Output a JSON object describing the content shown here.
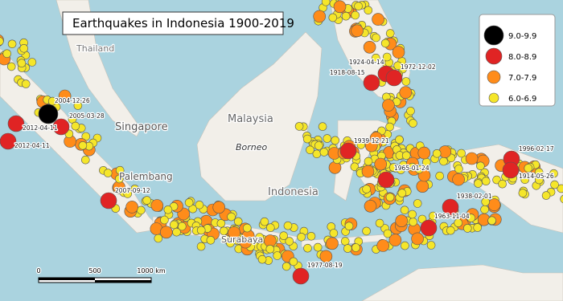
{
  "title": "Earthquakes in Indonesia 1900-2019",
  "legend": [
    {
      "label": "9.0-9.9",
      "color": "#000000"
    },
    {
      "label": "8.0-8.9",
      "color": "#e02424"
    },
    {
      "label": "7.0-7.9",
      "color": "#ff8c1a"
    },
    {
      "label": "6.0-6.9",
      "color": "#f5e62a"
    }
  ],
  "events": [
    {
      "date": "2004-12-26"
    },
    {
      "date": "2005-03-28"
    },
    {
      "date": "2012-04-11"
    },
    {
      "date": "2012-04-11"
    },
    {
      "date": "2007-09-12"
    },
    {
      "date": "1924-04-14"
    },
    {
      "date": "1918-08-15"
    },
    {
      "date": "1972-12-02"
    },
    {
      "date": "1939-12-21"
    },
    {
      "date": "1965-01-24"
    },
    {
      "date": "1996-02-17"
    },
    {
      "date": "1914-05-26"
    },
    {
      "date": "1938-02-01"
    },
    {
      "date": "1963-11-04"
    },
    {
      "date": "1977-08-19"
    }
  ],
  "places": [
    "Singapore",
    "Malaysia",
    "Borneo",
    "Indonesia",
    "Palembang",
    "Thailand",
    "Surabaya"
  ],
  "scale": [
    "0",
    "500",
    "1000 km"
  ]
}
